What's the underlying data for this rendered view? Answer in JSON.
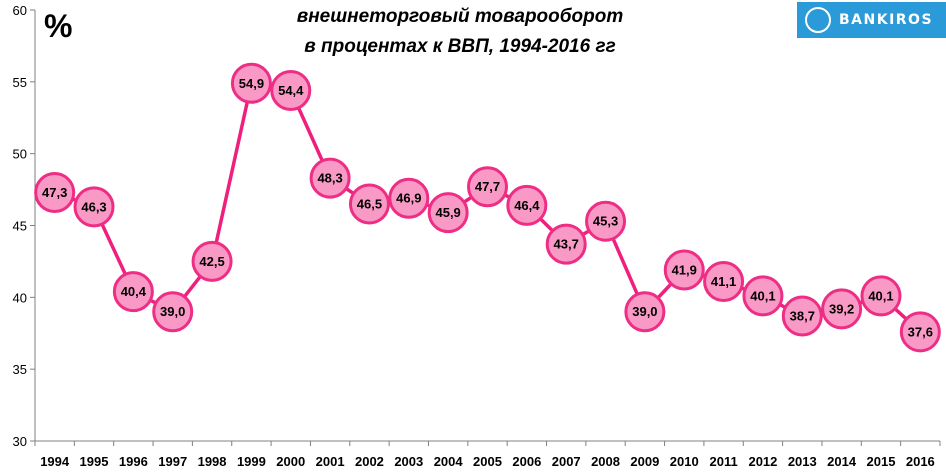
{
  "header": {
    "title_line1": "внешнеторговый товарооборот",
    "title_line2": "в процентах к ВВП, 1994-2016 гг",
    "unit_label": "%"
  },
  "logo": {
    "text": "BANKIROS",
    "icon": "bankiros-logo-icon"
  },
  "colors": {
    "line": "#f01f7d",
    "marker_fill": "#f99ac6",
    "marker_stroke": "#ee2e85",
    "axis": "#808080"
  },
  "chart_data": {
    "type": "line",
    "title": "внешнеторговый товарооборот в процентах к ВВП, 1994-2016 гг",
    "ylabel": "%",
    "xlabel": "",
    "ylim": [
      30,
      60
    ],
    "yticks": [
      "30",
      "35",
      "40",
      "45",
      "50",
      "55",
      "60"
    ],
    "categories": [
      "1994",
      "1995",
      "1996",
      "1997",
      "1998",
      "1999",
      "2000",
      "2001",
      "2002",
      "2003",
      "2004",
      "2005",
      "2006",
      "2007",
      "2008",
      "2009",
      "2010",
      "2011",
      "2012",
      "2013",
      "2014",
      "2015",
      "2016"
    ],
    "values": [
      47.3,
      46.3,
      40.4,
      39.0,
      42.5,
      54.9,
      54.4,
      48.3,
      46.5,
      46.9,
      45.9,
      47.7,
      46.4,
      43.7,
      45.3,
      39.0,
      41.9,
      41.1,
      40.1,
      38.7,
      39.2,
      40.1,
      37.6
    ],
    "data_labels": [
      "47,3",
      "46,3",
      "40,4",
      "39,0",
      "42,5",
      "54,9",
      "54,4",
      "48,3",
      "46,5",
      "46,9",
      "45,9",
      "47,7",
      "46,4",
      "43,7",
      "45,3",
      "39,0",
      "41,9",
      "41,1",
      "40,1",
      "38,7",
      "39,2",
      "40,1",
      "37,6"
    ],
    "grid": false,
    "legend": "none"
  }
}
